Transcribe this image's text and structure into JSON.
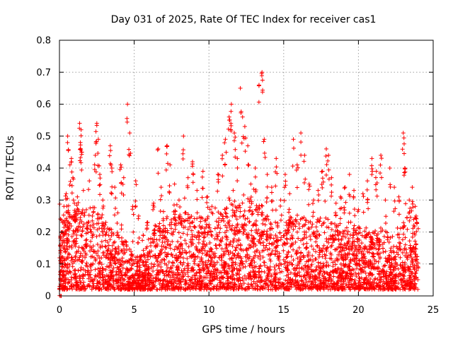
{
  "chart_data": {
    "type": "scatter",
    "title": "Day 031 of 2025, Rate Of TEC Index for receiver cas1",
    "xlabel": "GPS time / hours",
    "ylabel": "ROTI / TECUs",
    "xlim": [
      0,
      25
    ],
    "ylim": [
      0,
      0.8
    ],
    "xticks": [
      "0",
      "5",
      "10",
      "15",
      "20",
      "25"
    ],
    "yticks": [
      "0",
      "0.1",
      "0.2",
      "0.3",
      "0.4",
      "0.5",
      "0.6",
      "0.7",
      "0.8"
    ],
    "grid": true,
    "marker": "+",
    "color": "#ff0000",
    "series": [
      {
        "points": [
          [
            0.05,
            0.05
          ],
          [
            0.1,
            0.12
          ],
          [
            0.15,
            0.08
          ],
          [
            0.2,
            0.2
          ],
          [
            0.25,
            0.15
          ],
          [
            0.3,
            0.28
          ],
          [
            0.35,
            0.1
          ],
          [
            0.4,
            0.22
          ],
          [
            0.45,
            0.32
          ],
          [
            0.5,
            0.18
          ],
          [
            0.55,
            0.5
          ],
          [
            0.6,
            0.26
          ],
          [
            0.7,
            0.41
          ],
          [
            0.8,
            0.43
          ],
          [
            0.9,
            0.37
          ],
          [
            1.0,
            0.29
          ],
          [
            1.1,
            0.24
          ],
          [
            1.2,
            0.31
          ],
          [
            1.35,
            0.54
          ],
          [
            1.4,
            0.48
          ],
          [
            1.45,
            0.52
          ],
          [
            1.5,
            0.45
          ],
          [
            1.6,
            0.33
          ],
          [
            1.8,
            0.27
          ],
          [
            2.0,
            0.36
          ],
          [
            2.2,
            0.25
          ],
          [
            2.4,
            0.44
          ],
          [
            2.5,
            0.54
          ],
          [
            2.6,
            0.49
          ],
          [
            2.7,
            0.38
          ],
          [
            2.9,
            0.3
          ],
          [
            3.1,
            0.23
          ],
          [
            3.4,
            0.47
          ],
          [
            3.5,
            0.4
          ],
          [
            3.7,
            0.34
          ],
          [
            3.9,
            0.26
          ],
          [
            4.1,
            0.41
          ],
          [
            4.3,
            0.37
          ],
          [
            4.55,
            0.6
          ],
          [
            4.7,
            0.51
          ],
          [
            4.9,
            0.28
          ],
          [
            5.1,
            0.36
          ],
          [
            5.3,
            0.25
          ],
          [
            5.6,
            0.19
          ],
          [
            5.9,
            0.23
          ],
          [
            6.3,
            0.29
          ],
          [
            6.6,
            0.46
          ],
          [
            6.8,
            0.34
          ],
          [
            7.2,
            0.47
          ],
          [
            7.4,
            0.41
          ],
          [
            7.7,
            0.35
          ],
          [
            8.0,
            0.3
          ],
          [
            8.3,
            0.5
          ],
          [
            8.6,
            0.37
          ],
          [
            8.9,
            0.42
          ],
          [
            9.2,
            0.33
          ],
          [
            9.6,
            0.39
          ],
          [
            9.9,
            0.31
          ],
          [
            10.2,
            0.28
          ],
          [
            10.6,
            0.38
          ],
          [
            10.9,
            0.44
          ],
          [
            11.1,
            0.49
          ],
          [
            11.35,
            0.56
          ],
          [
            11.5,
            0.6
          ],
          [
            11.7,
            0.51
          ],
          [
            11.9,
            0.43
          ],
          [
            12.1,
            0.65
          ],
          [
            12.25,
            0.56
          ],
          [
            12.4,
            0.53
          ],
          [
            12.6,
            0.47
          ],
          [
            12.8,
            0.35
          ],
          [
            13.1,
            0.4
          ],
          [
            13.35,
            0.66
          ],
          [
            13.55,
            0.7
          ],
          [
            13.7,
            0.49
          ],
          [
            13.9,
            0.38
          ],
          [
            14.2,
            0.34
          ],
          [
            14.5,
            0.43
          ],
          [
            14.8,
            0.3
          ],
          [
            15.1,
            0.38
          ],
          [
            15.4,
            0.32
          ],
          [
            15.65,
            0.49
          ],
          [
            15.9,
            0.41
          ],
          [
            16.15,
            0.51
          ],
          [
            16.4,
            0.44
          ],
          [
            16.7,
            0.35
          ],
          [
            17.0,
            0.3
          ],
          [
            17.3,
            0.33
          ],
          [
            17.6,
            0.39
          ],
          [
            17.85,
            0.46
          ],
          [
            18.0,
            0.44
          ],
          [
            18.2,
            0.37
          ],
          [
            18.5,
            0.29
          ],
          [
            18.8,
            0.31
          ],
          [
            19.1,
            0.34
          ],
          [
            19.4,
            0.38
          ],
          [
            19.7,
            0.33
          ],
          [
            20.0,
            0.27
          ],
          [
            20.3,
            0.32
          ],
          [
            20.6,
            0.36
          ],
          [
            20.9,
            0.43
          ],
          [
            21.2,
            0.39
          ],
          [
            21.5,
            0.44
          ],
          [
            21.8,
            0.3
          ],
          [
            22.1,
            0.4
          ],
          [
            22.4,
            0.34
          ],
          [
            22.7,
            0.31
          ],
          [
            23.0,
            0.51
          ],
          [
            23.1,
            0.4
          ],
          [
            23.4,
            0.3
          ],
          [
            23.6,
            0.34
          ],
          [
            23.8,
            0.28
          ],
          [
            23.9,
            0.23
          ]
        ]
      }
    ],
    "bulk_envelope": [
      [
        0,
        0.24
      ],
      [
        0.5,
        0.27
      ],
      [
        1,
        0.26
      ],
      [
        1.5,
        0.28
      ],
      [
        2,
        0.27
      ],
      [
        2.5,
        0.29
      ],
      [
        3,
        0.22
      ],
      [
        3.5,
        0.21
      ],
      [
        4,
        0.19
      ],
      [
        4.5,
        0.18
      ],
      [
        5,
        0.12
      ],
      [
        5.5,
        0.13
      ],
      [
        6,
        0.15
      ],
      [
        6.5,
        0.23
      ],
      [
        7,
        0.25
      ],
      [
        7.5,
        0.26
      ],
      [
        8,
        0.25
      ],
      [
        8.5,
        0.27
      ],
      [
        9,
        0.24
      ],
      [
        9.5,
        0.25
      ],
      [
        10,
        0.23
      ],
      [
        10.5,
        0.25
      ],
      [
        11,
        0.27
      ],
      [
        11.5,
        0.3
      ],
      [
        12,
        0.3
      ],
      [
        12.5,
        0.31
      ],
      [
        13,
        0.29
      ],
      [
        13.5,
        0.3
      ],
      [
        14,
        0.27
      ],
      [
        14.5,
        0.25
      ],
      [
        15,
        0.23
      ],
      [
        15.5,
        0.25
      ],
      [
        16,
        0.26
      ],
      [
        16.5,
        0.24
      ],
      [
        17,
        0.23
      ],
      [
        17.5,
        0.25
      ],
      [
        18,
        0.27
      ],
      [
        18.5,
        0.22
      ],
      [
        19,
        0.21
      ],
      [
        19.5,
        0.24
      ],
      [
        20,
        0.22
      ],
      [
        20.5,
        0.2
      ],
      [
        21,
        0.21
      ],
      [
        21.5,
        0.22
      ],
      [
        22,
        0.2
      ],
      [
        22.5,
        0.19
      ],
      [
        23,
        0.23
      ],
      [
        23.5,
        0.27
      ],
      [
        24,
        0.25
      ]
    ],
    "bulk_floor": 0.02,
    "time_range": [
      0,
      24
    ]
  }
}
